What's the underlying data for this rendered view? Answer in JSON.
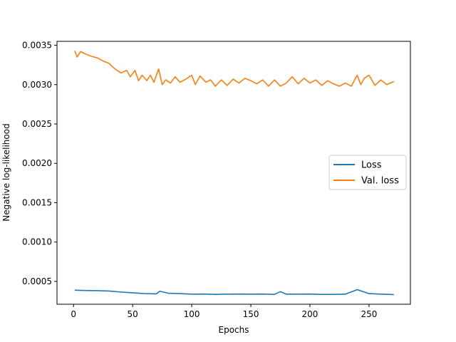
{
  "chart_data": {
    "type": "line",
    "title": "",
    "xlabel": "Epochs",
    "ylabel": "Negative log-likelihood",
    "xlim": [
      -14,
      285
    ],
    "ylim": [
      0.00021,
      0.00355
    ],
    "xticks": [
      0,
      50,
      100,
      150,
      200,
      250
    ],
    "xtick_labels": [
      "0",
      "50",
      "100",
      "150",
      "200",
      "250"
    ],
    "yticks": [
      0.0005,
      0.001,
      0.0015,
      0.002,
      0.0025,
      0.003,
      0.0035
    ],
    "ytick_labels": [
      "0.0005",
      "0.0010",
      "0.0015",
      "0.0020",
      "0.0025",
      "0.0030",
      "0.0035"
    ],
    "grid": false,
    "legend_position": "center-right",
    "series": [
      {
        "name": "Loss",
        "color": "#1f77b4",
        "x": [
          1,
          10,
          20,
          30,
          40,
          50,
          60,
          70,
          73,
          80,
          90,
          100,
          110,
          120,
          130,
          140,
          150,
          160,
          170,
          175,
          180,
          190,
          200,
          210,
          220,
          230,
          240,
          250,
          260,
          271
        ],
        "y": [
          0.000388,
          0.000385,
          0.000383,
          0.000378,
          0.000365,
          0.000355,
          0.000345,
          0.000342,
          0.000375,
          0.00035,
          0.000345,
          0.000338,
          0.00034,
          0.000335,
          0.000338,
          0.00034,
          0.000338,
          0.00034,
          0.000335,
          0.00037,
          0.000338,
          0.000338,
          0.00034,
          0.000335,
          0.000335,
          0.000338,
          0.000395,
          0.000345,
          0.000338,
          0.000333
        ]
      },
      {
        "name": "Val. loss",
        "color": "#ff7f0e",
        "x": [
          1,
          3,
          6,
          10,
          15,
          20,
          25,
          30,
          35,
          40,
          45,
          48,
          52,
          55,
          58,
          62,
          65,
          68,
          72,
          75,
          78,
          82,
          86,
          90,
          95,
          100,
          103,
          107,
          112,
          116,
          120,
          125,
          130,
          135,
          140,
          145,
          150,
          155,
          160,
          165,
          170,
          175,
          180,
          185,
          190,
          195,
          200,
          205,
          210,
          215,
          220,
          225,
          230,
          235,
          240,
          243,
          246,
          250,
          255,
          260,
          265,
          271
        ],
        "y": [
          0.00343,
          0.00335,
          0.00342,
          0.00339,
          0.00336,
          0.00334,
          0.0033,
          0.00327,
          0.0032,
          0.00315,
          0.00318,
          0.0031,
          0.00318,
          0.00305,
          0.00312,
          0.00305,
          0.00312,
          0.00303,
          0.0032,
          0.003,
          0.00306,
          0.00302,
          0.0031,
          0.00303,
          0.00307,
          0.00312,
          0.003,
          0.00311,
          0.00303,
          0.00306,
          0.00298,
          0.00306,
          0.00299,
          0.00307,
          0.00302,
          0.00308,
          0.00305,
          0.00301,
          0.00306,
          0.00298,
          0.00306,
          0.00298,
          0.00302,
          0.0031,
          0.00301,
          0.00308,
          0.00302,
          0.00306,
          0.00299,
          0.00305,
          0.00301,
          0.00298,
          0.00302,
          0.00298,
          0.00312,
          0.003,
          0.00308,
          0.00312,
          0.00299,
          0.00306,
          0.003,
          0.00304
        ]
      }
    ]
  }
}
